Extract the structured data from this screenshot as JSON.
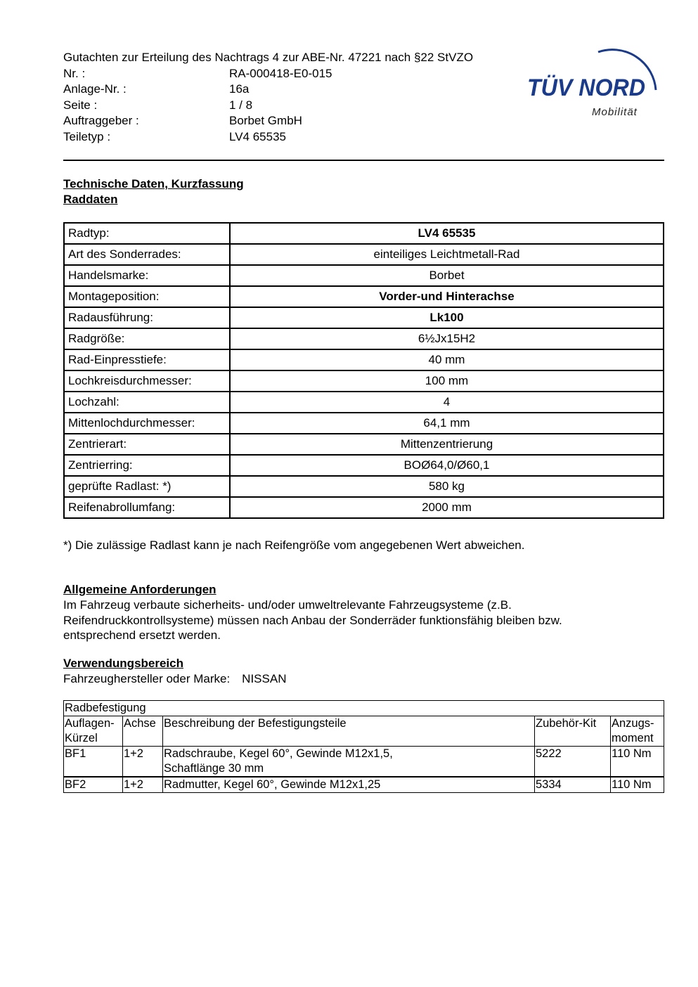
{
  "header": {
    "title": "Gutachten zur Erteilung des Nachtrags 4 zur ABE-Nr. 47221 nach §22 StVZO",
    "fields": [
      {
        "label": "Nr. :",
        "value": "RA-000418-E0-015"
      },
      {
        "label": "Anlage-Nr. :",
        "value": "16a"
      },
      {
        "label": "Seite :",
        "value": "1 / 8"
      },
      {
        "label": "Auftraggeber :",
        "value": "Borbet GmbH"
      },
      {
        "label": "Teiletyp :",
        "value": "LV4 65535"
      }
    ]
  },
  "logo": {
    "text": "TÜV NORD",
    "subtitle": "Mobilität",
    "color": "#1a3a8a"
  },
  "section1": {
    "title": "Technische Daten, Kurzfassung",
    "subtitle": "Raddaten"
  },
  "wheel_table": [
    {
      "label": "Radtyp:",
      "value": "LV4 65535",
      "bold": true
    },
    {
      "label": "Art des Sonderrades:",
      "value": "einteiliges Leichtmetall-Rad"
    },
    {
      "label": "Handelsmarke:",
      "value": "Borbet"
    },
    {
      "label": "Montageposition:",
      "value": "Vorder-und Hinterachse",
      "bold": true
    },
    {
      "label": "Radausführung:",
      "value": "Lk100",
      "bold": true
    },
    {
      "label": "Radgröße:",
      "value": "6½Jx15H2"
    },
    {
      "label": "Rad-Einpresstiefe:",
      "value": "40 mm"
    },
    {
      "label": "Lochkreisdurchmesser:",
      "value": "100 mm"
    },
    {
      "label": "Lochzahl:",
      "value": "4"
    },
    {
      "label": "Mittenlochdurchmesser:",
      "value": "64,1 mm"
    },
    {
      "label": "Zentrierart:",
      "value": "Mittenzentrierung"
    },
    {
      "label": "Zentrierring:",
      "value": "BOØ64,0/Ø60,1"
    },
    {
      "label": "geprüfte Radlast: *)",
      "value": "580 kg"
    },
    {
      "label": "Reifenabrollumfang:",
      "value": "2000 mm"
    }
  ],
  "footnote": "*) Die zulässige Radlast kann je nach Reifengröße vom angegebenen Wert abweichen.",
  "general": {
    "title": "Allgemeine Anforderungen",
    "lines": [
      "Im Fahrzeug verbaute sicherheits- und/oder umweltrelevante Fahrzeugsysteme (z.B.",
      "Reifendruckkontrollsysteme) müssen nach Anbau der Sonderräder funktionsfähig bleiben bzw.",
      "entsprechend ersetzt werden."
    ]
  },
  "usage": {
    "title": "Verwendungsbereich",
    "label": "Fahrzeughersteller oder Marke:",
    "value": "NISSAN"
  },
  "fixing": {
    "title": "Radbefestigung",
    "headers": [
      "Auflagen-\nKürzel",
      "Achse",
      "Beschreibung der Befestigungsteile",
      "Zubehör-Kit",
      "Anzugs-\nmoment"
    ],
    "rows": [
      [
        "BF1",
        "1+2",
        "Radschraube, Kegel 60°, Gewinde M12x1,5,\nSchaftlänge 30 mm",
        "5222",
        "110 Nm"
      ],
      [
        "BF2",
        "1+2",
        "Radmutter, Kegel 60°, Gewinde M12x1,25",
        "5334",
        "110 Nm"
      ]
    ]
  }
}
